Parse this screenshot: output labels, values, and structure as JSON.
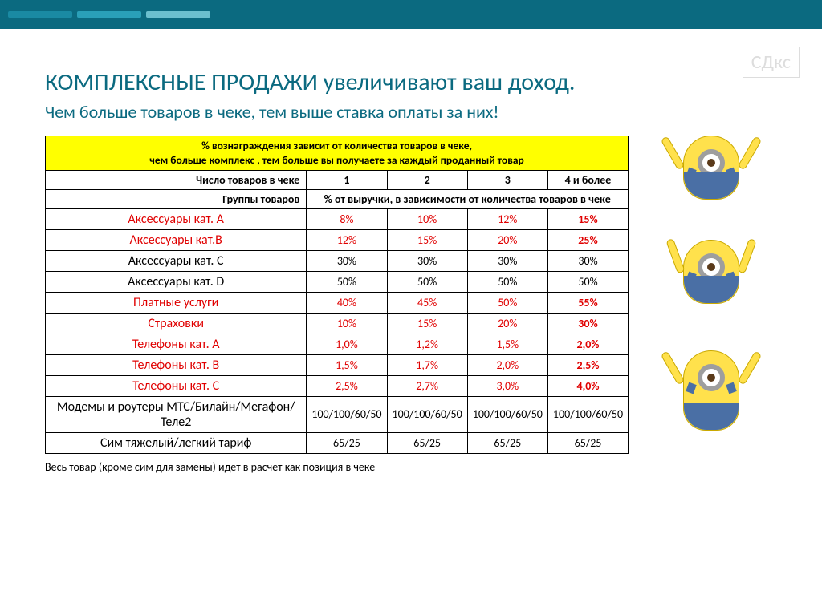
{
  "watermark": "СДкс",
  "title": "КОМПЛЕКСНЫЕ ПРОДАЖИ увеличивают ваш доход.",
  "subtitle": "Чем больше товаров в чеке, тем выше ставка оплаты за них!",
  "header_top": "% вознаграждения зависит от количества товаров в чеке,",
  "header_bottom": "чем больше комплекс , тем больше вы получаете за каждый проданный товар",
  "row_count_label": "Число товаров в чеке",
  "row_group_label": "Группы товаров",
  "columns": {
    "c1": "1",
    "c2": "2",
    "c3": "3",
    "c4": "4 и более"
  },
  "percent_note": "% от выручки, в зависимости от количества товаров в чеке",
  "rows": [
    {
      "name": "Аксессуары  кат. А",
      "red": true,
      "scale": true,
      "v": [
        "8%",
        "10%",
        "12%",
        "15%"
      ]
    },
    {
      "name": "Аксессуары  кат.В",
      "red": true,
      "scale": true,
      "v": [
        "12%",
        "15%",
        "20%",
        "25%"
      ]
    },
    {
      "name": "Аксессуары  кат. С",
      "red": false,
      "scale": false,
      "v": [
        "30%",
        "30%",
        "30%",
        "30%"
      ]
    },
    {
      "name": "Аксессуары  кат. D",
      "red": false,
      "scale": false,
      "v": [
        "50%",
        "50%",
        "50%",
        "50%"
      ]
    },
    {
      "name": "Платные услуги",
      "red": true,
      "scale": true,
      "v": [
        "40%",
        "45%",
        "50%",
        "55%"
      ]
    },
    {
      "name": "Страховки",
      "red": true,
      "scale": true,
      "v": [
        "10%",
        "15%",
        "20%",
        "30%"
      ]
    },
    {
      "name": "Телефоны   кат. А",
      "red": true,
      "scale": true,
      "v": [
        "1,0%",
        "1,2%",
        "1,5%",
        "2,0%"
      ]
    },
    {
      "name": "Телефоны   кат. В",
      "red": true,
      "scale": true,
      "v": [
        "1,5%",
        "1,7%",
        "2,0%",
        "2,5%"
      ]
    },
    {
      "name": "Телефоны  кат. С",
      "red": true,
      "scale": true,
      "v": [
        "2,5%",
        "2,7%",
        "3,0%",
        "4,0%"
      ]
    },
    {
      "name": "Модемы и роутеры МТС/Билайн/Мегафон/Теле2",
      "red": false,
      "scale": false,
      "v": [
        "100/100/60/50",
        "100/100/60/50",
        "100/100/60/50",
        "100/100/60/50"
      ]
    },
    {
      "name": "Сим тяжелый/легкий тариф",
      "red": false,
      "scale": false,
      "v": [
        "65/25",
        "65/25",
        "65/25",
        "65/25"
      ]
    }
  ],
  "footnote": "Весь товар (кроме сим для замены) идет в расчет как позиция в чеке",
  "colors": {
    "brand": "#0b6a80",
    "highlight": "#ffff00",
    "red": "#e00000",
    "border": "#000000"
  }
}
